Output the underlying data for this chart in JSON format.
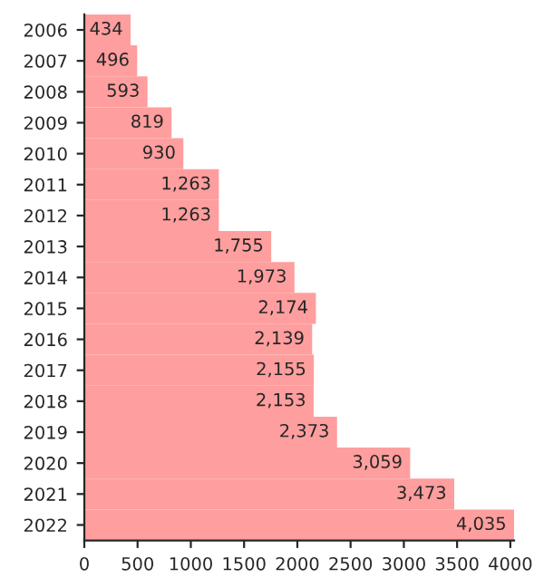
{
  "chart_data": {
    "type": "bar",
    "orientation": "horizontal",
    "categories": [
      "2006",
      "2007",
      "2008",
      "2009",
      "2010",
      "2011",
      "2012",
      "2013",
      "2014",
      "2015",
      "2016",
      "2017",
      "2018",
      "2019",
      "2020",
      "2021",
      "2022"
    ],
    "values": [
      434,
      496,
      593,
      819,
      930,
      1263,
      1263,
      1755,
      1973,
      2174,
      2139,
      2155,
      2153,
      2373,
      3059,
      3473,
      4035
    ],
    "value_labels": [
      "434",
      "496",
      "593",
      "819",
      "930",
      "1,263",
      "1,263",
      "1,755",
      "1,973",
      "2,174",
      "2,139",
      "2,155",
      "2,153",
      "2,373",
      "3,059",
      "3,473",
      "4,035"
    ],
    "color": "#ff9e9e",
    "xlim": [
      0,
      4035
    ],
    "xticks": [
      0,
      500,
      1000,
      1500,
      2000,
      2500,
      3000,
      3500,
      4000
    ],
    "grid": false,
    "legend": false
  }
}
